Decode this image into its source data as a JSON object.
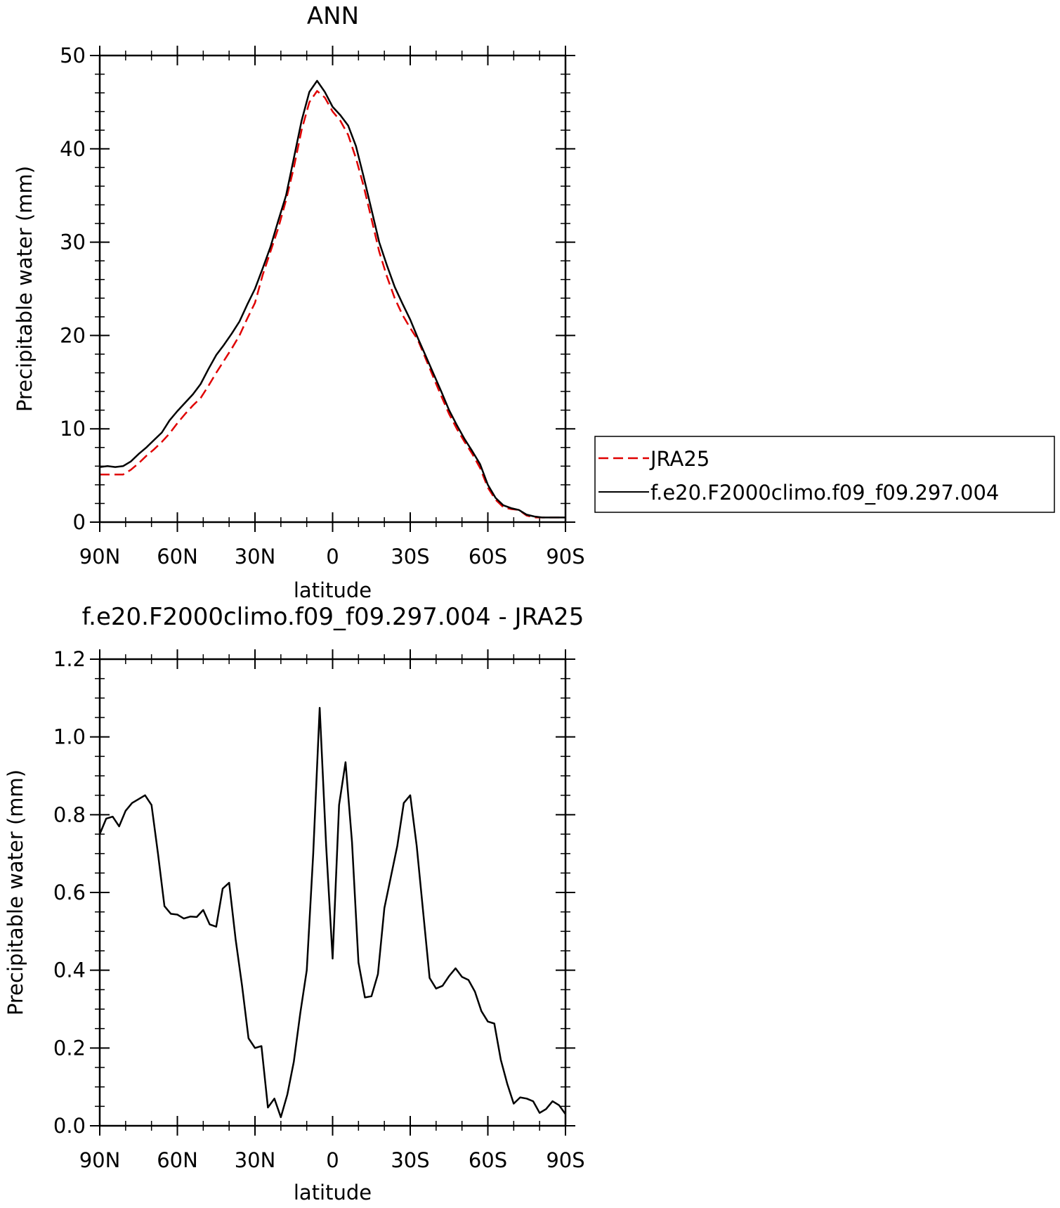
{
  "charts": [
    {
      "id": "top",
      "type": "line",
      "title": "ANN",
      "xlabel": "latitude",
      "ylabel": "Precipitable water (mm)",
      "xlim": [
        90,
        -90
      ],
      "ylim": [
        0,
        50
      ],
      "xticks": [
        {
          "value": 90,
          "label": "90N"
        },
        {
          "value": 60,
          "label": "60N"
        },
        {
          "value": 30,
          "label": "30N"
        },
        {
          "value": 0,
          "label": "0"
        },
        {
          "value": -30,
          "label": "30S"
        },
        {
          "value": -60,
          "label": "60S"
        },
        {
          "value": -90,
          "label": "90S"
        }
      ],
      "yticks": [
        {
          "value": 0,
          "label": "0"
        },
        {
          "value": 10,
          "label": "10"
        },
        {
          "value": 20,
          "label": "20"
        },
        {
          "value": 30,
          "label": "30"
        },
        {
          "value": 40,
          "label": "40"
        },
        {
          "value": 50,
          "label": "50"
        }
      ],
      "y_minor_step": 2,
      "x_minor_step": 10,
      "legend": {
        "placement": "right",
        "entries": [
          {
            "label": "JRA25",
            "color": "#e00000",
            "dash": "dashed"
          },
          {
            "label": "f.e20.F2000climo.f09_f09.297.004",
            "color": "#000000",
            "dash": "solid"
          }
        ]
      },
      "series": [
        {
          "name": "JRA25",
          "color": "#e00000",
          "dash": "dashed",
          "x": [
            90,
            87,
            84,
            81,
            78,
            75,
            72,
            69,
            66,
            63,
            60,
            57,
            54,
            51,
            48,
            45,
            42,
            39,
            36,
            33,
            30,
            27,
            24,
            21,
            18,
            15,
            12,
            9,
            6,
            3,
            0,
            -3,
            -6,
            -9,
            -12,
            -15,
            -18,
            -21,
            -24,
            -27,
            -30,
            -33,
            -36,
            -39,
            -42,
            -45,
            -48,
            -51,
            -54,
            -57,
            -60,
            -63,
            -66,
            -69,
            -72,
            -75,
            -78,
            -81,
            -84,
            -87,
            -90
          ],
          "y": [
            5.1,
            5.1,
            5.1,
            5.1,
            5.6,
            6.3,
            7.1,
            7.8,
            8.6,
            9.5,
            10.6,
            11.6,
            12.5,
            13.3,
            14.6,
            16.0,
            17.3,
            18.6,
            20.0,
            21.8,
            23.5,
            26.5,
            29.0,
            31.5,
            34.5,
            38.0,
            42.0,
            45.0,
            46.2,
            45.5,
            44.0,
            43.0,
            41.5,
            39.0,
            36.0,
            32.5,
            29.0,
            26.3,
            24.0,
            22.2,
            20.8,
            19.5,
            17.5,
            15.5,
            13.5,
            11.6,
            10.0,
            8.6,
            7.3,
            5.8,
            3.7,
            2.4,
            1.6,
            1.4,
            1.3,
            0.7,
            0.5,
            0.5,
            0.5,
            0.5,
            0.5
          ]
        },
        {
          "name": "f.e20.F2000climo.f09_f09.297.004",
          "color": "#000000",
          "dash": "solid",
          "x": [
            90,
            87,
            84,
            81,
            78,
            75,
            72,
            69,
            66,
            63,
            60,
            57,
            54,
            51,
            48,
            45,
            42,
            39,
            36,
            33,
            30,
            27,
            24,
            21,
            18,
            15,
            12,
            9,
            6,
            3,
            0,
            -3,
            -6,
            -9,
            -12,
            -15,
            -18,
            -21,
            -24,
            -27,
            -30,
            -33,
            -36,
            -39,
            -42,
            -45,
            -48,
            -51,
            -54,
            -57,
            -60,
            -63,
            -66,
            -69,
            -72,
            -75,
            -78,
            -81,
            -84,
            -87,
            -90
          ],
          "y": [
            5.9,
            6.0,
            5.9,
            6.0,
            6.5,
            7.3,
            8.0,
            8.8,
            9.6,
            10.9,
            11.9,
            12.8,
            13.7,
            14.8,
            16.4,
            17.9,
            19.0,
            20.2,
            21.5,
            23.3,
            25.0,
            27.2,
            29.5,
            32.3,
            35.0,
            39.0,
            43.0,
            46.1,
            47.3,
            46.1,
            44.5,
            43.6,
            42.5,
            40.3,
            37.0,
            33.5,
            30.0,
            27.5,
            25.2,
            23.4,
            21.7,
            19.7,
            17.8,
            15.9,
            14.0,
            12.0,
            10.4,
            8.9,
            7.6,
            6.2,
            4.0,
            2.6,
            1.8,
            1.5,
            1.3,
            0.8,
            0.6,
            0.5,
            0.5,
            0.5,
            0.5
          ]
        }
      ]
    },
    {
      "id": "bottom",
      "type": "line",
      "title": "f.e20.F2000climo.f09_f09.297.004 - JRA25",
      "xlabel": "latitude",
      "ylabel": "Precipitable water (mm)",
      "xlim": [
        90,
        -90
      ],
      "ylim": [
        0,
        1.2
      ],
      "xticks": [
        {
          "value": 90,
          "label": "90N"
        },
        {
          "value": 60,
          "label": "60N"
        },
        {
          "value": 30,
          "label": "30N"
        },
        {
          "value": 0,
          "label": "0"
        },
        {
          "value": -30,
          "label": "30S"
        },
        {
          "value": -60,
          "label": "60S"
        },
        {
          "value": -90,
          "label": "90S"
        }
      ],
      "yticks": [
        {
          "value": 0,
          "label": "0.0"
        },
        {
          "value": 0.2,
          "label": "0.2"
        },
        {
          "value": 0.4,
          "label": "0.4"
        },
        {
          "value": 0.6,
          "label": "0.6"
        },
        {
          "value": 0.8,
          "label": "0.8"
        },
        {
          "value": 1.0,
          "label": "1.0"
        },
        {
          "value": 1.2,
          "label": "1.2"
        }
      ],
      "y_minor_step": 0.05,
      "x_minor_step": 10,
      "series": [
        {
          "color": "#000000",
          "dash": "solid",
          "x": [
            90,
            87.5,
            85,
            82.5,
            80,
            77.5,
            75,
            72.5,
            70,
            67.5,
            65,
            62.5,
            60,
            57.5,
            55,
            52.5,
            50,
            47.5,
            45,
            42.5,
            40,
            37.5,
            35,
            32.5,
            30,
            27.5,
            25,
            22.5,
            20,
            17.5,
            15,
            12.5,
            10,
            7.5,
            5,
            2.5,
            0,
            -2.5,
            -5,
            -7.5,
            -10,
            -12.5,
            -15,
            -17.5,
            -20,
            -22.5,
            -25,
            -27.5,
            -30,
            -32.5,
            -35,
            -37.5,
            -40,
            -42.5,
            -45,
            -47.5,
            -50,
            -52.5,
            -55,
            -57.5,
            -60,
            -62.5,
            -65,
            -67.5,
            -70,
            -72.5,
            -75,
            -77.5,
            -80,
            -82.5,
            -85,
            -87.5,
            -90
          ],
          "y": [
            0.75,
            0.79,
            0.795,
            0.77,
            0.81,
            0.83,
            0.84,
            0.85,
            0.825,
            0.7,
            0.565,
            0.545,
            0.543,
            0.533,
            0.538,
            0.537,
            0.555,
            0.518,
            0.512,
            0.61,
            0.625,
            0.48,
            0.36,
            0.225,
            0.2,
            0.205,
            0.047,
            0.07,
            0.022,
            0.08,
            0.165,
            0.29,
            0.4,
            0.7,
            1.075,
            0.72,
            0.43,
            0.825,
            0.935,
            0.73,
            0.42,
            0.33,
            0.333,
            0.39,
            0.56,
            0.64,
            0.72,
            0.83,
            0.85,
            0.72,
            0.55,
            0.38,
            0.353,
            0.36,
            0.385,
            0.405,
            0.383,
            0.375,
            0.345,
            0.295,
            0.268,
            0.263,
            0.17,
            0.108,
            0.057,
            0.073,
            0.07,
            0.063,
            0.033,
            0.043,
            0.063,
            0.053,
            0.03
          ]
        }
      ]
    }
  ]
}
